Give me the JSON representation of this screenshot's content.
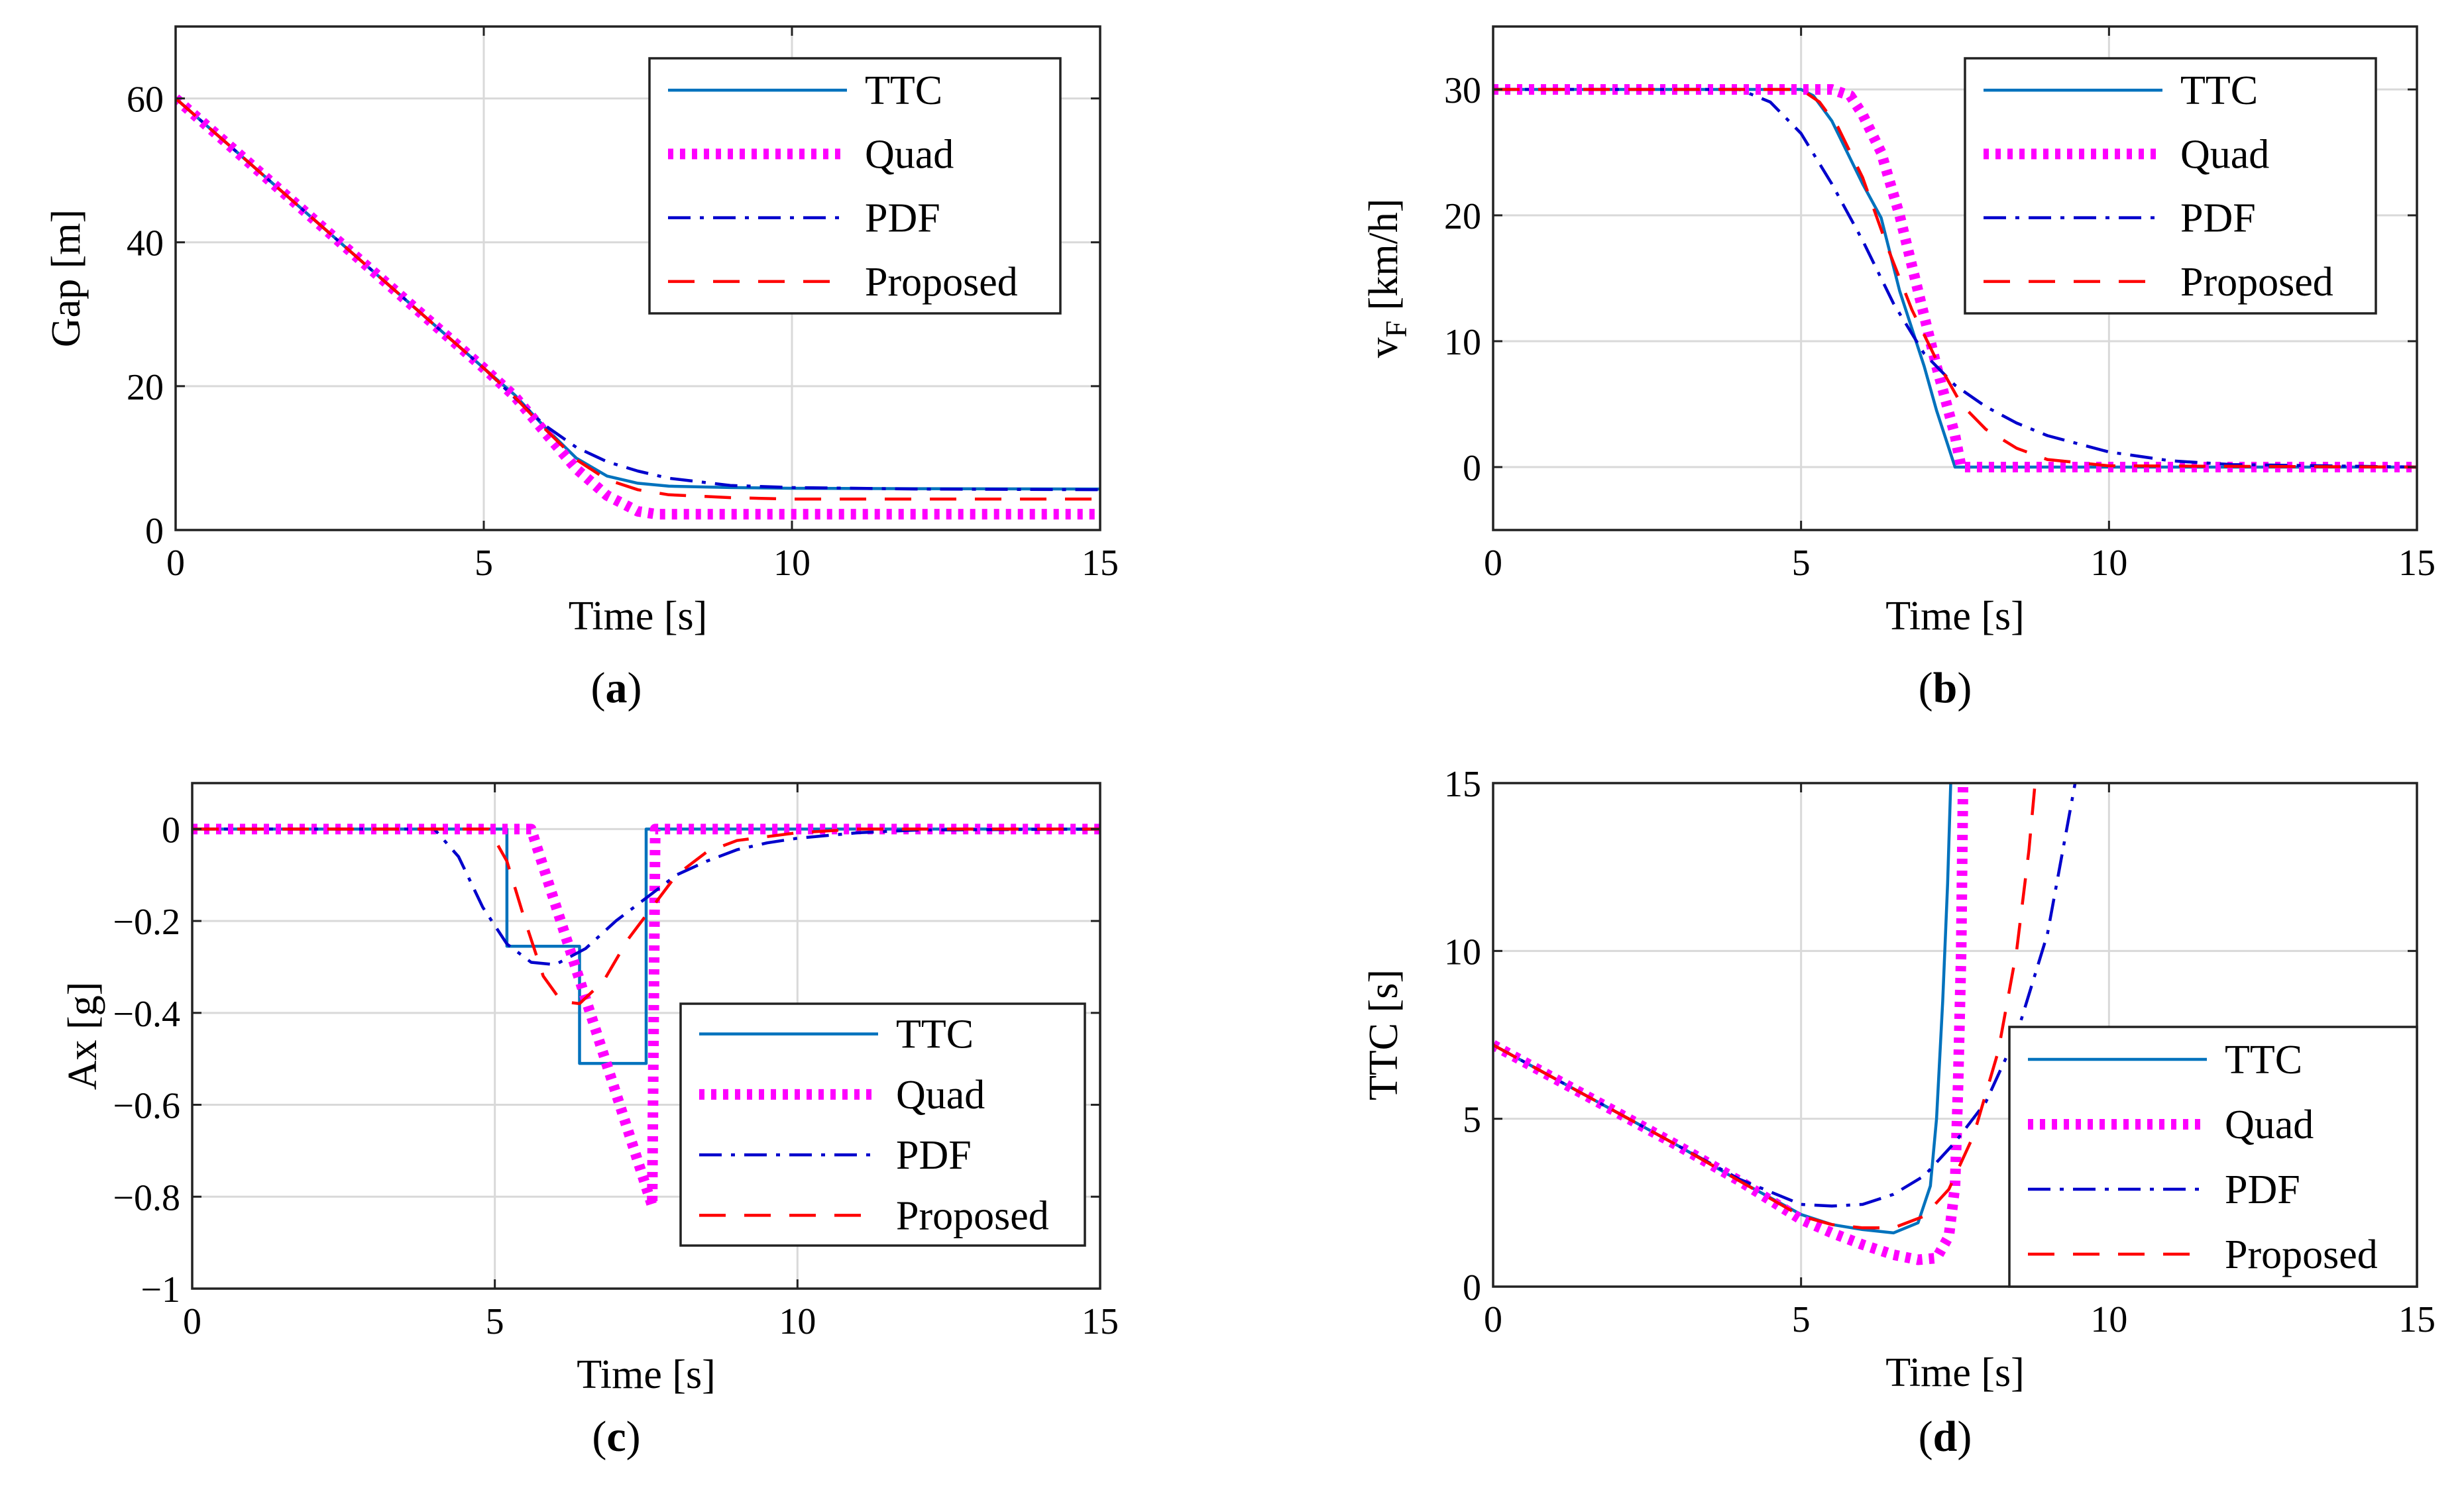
{
  "styles": {
    "TTC": {
      "color": "#0072bd",
      "width": 4.5,
      "dash": ""
    },
    "Quad": {
      "color": "#ff00ff",
      "width": 16,
      "dash": "8 10"
    },
    "PDF": {
      "color": "#0000cc",
      "width": 4.5,
      "dash": "34 14 6 14"
    },
    "Proposed": {
      "color": "#ff0000",
      "width": 4.5,
      "dash": "40 28"
    }
  },
  "chart_data": [
    {
      "id": "a",
      "type": "line",
      "caption": "a",
      "xlabel": "Time [s]",
      "ylabel": "Gap [m]",
      "xlim": [
        0,
        15
      ],
      "ylim": [
        0,
        70
      ],
      "xticks": [
        0,
        5,
        10,
        15
      ],
      "yticks": [
        0,
        20,
        40,
        60
      ],
      "grid": true,
      "legend_position": "top-right",
      "legend": [
        "TTC",
        "Quad",
        "PDF",
        "Proposed"
      ],
      "series": [
        {
          "name": "TTC",
          "points": [
            [
              0,
              60
            ],
            [
              1,
              52.5
            ],
            [
              2,
              45
            ],
            [
              3,
              37.5
            ],
            [
              4,
              30
            ],
            [
              5,
              22.5
            ],
            [
              5.5,
              18.8
            ],
            [
              6,
              14.2
            ],
            [
              6.5,
              10
            ],
            [
              7,
              7.5
            ],
            [
              7.5,
              6.5
            ],
            [
              8,
              6.1
            ],
            [
              9,
              5.9
            ],
            [
              10,
              5.8
            ],
            [
              12,
              5.75
            ],
            [
              15,
              5.7
            ]
          ]
        },
        {
          "name": "Quad",
          "points": [
            [
              0,
              60
            ],
            [
              1,
              52.5
            ],
            [
              2,
              45
            ],
            [
              3,
              37.5
            ],
            [
              4,
              30
            ],
            [
              5,
              22.5
            ],
            [
              5.5,
              18.6
            ],
            [
              6,
              13.5
            ],
            [
              6.5,
              8.5
            ],
            [
              7,
              4.8
            ],
            [
              7.5,
              2.6
            ],
            [
              7.8,
              2.2
            ],
            [
              10,
              2.2
            ],
            [
              12,
              2.2
            ],
            [
              15,
              2.2
            ]
          ]
        },
        {
          "name": "PDF",
          "points": [
            [
              0,
              60
            ],
            [
              1,
              52.5
            ],
            [
              2,
              45
            ],
            [
              3,
              37.5
            ],
            [
              4,
              30
            ],
            [
              5,
              22.5
            ],
            [
              5.5,
              18.4
            ],
            [
              6,
              14.5
            ],
            [
              6.5,
              11.5
            ],
            [
              7,
              9.5
            ],
            [
              7.5,
              8.2
            ],
            [
              8,
              7.2
            ],
            [
              9,
              6.2
            ],
            [
              10,
              5.9
            ],
            [
              12,
              5.7
            ],
            [
              15,
              5.6
            ]
          ]
        },
        {
          "name": "Proposed",
          "points": [
            [
              0,
              60
            ],
            [
              1,
              52.5
            ],
            [
              2,
              45
            ],
            [
              3,
              37.5
            ],
            [
              4,
              30
            ],
            [
              5,
              22.5
            ],
            [
              5.5,
              18.5
            ],
            [
              6,
              14
            ],
            [
              6.5,
              9.8
            ],
            [
              7,
              7
            ],
            [
              7.5,
              5.6
            ],
            [
              8,
              4.9
            ],
            [
              9,
              4.5
            ],
            [
              10,
              4.3
            ],
            [
              12,
              4.3
            ],
            [
              15,
              4.3
            ]
          ]
        }
      ]
    },
    {
      "id": "b",
      "type": "line",
      "caption": "b",
      "xlabel": "Time [s]",
      "ylabel": "v",
      "ylabel_sub": "F",
      "ylabel_unit": " [km/h]",
      "xlim": [
        0,
        15
      ],
      "ylim": [
        -5,
        35
      ],
      "xticks": [
        0,
        5,
        10,
        15
      ],
      "yticks": [
        0,
        10,
        20,
        30
      ],
      "grid": true,
      "legend_position": "top-right",
      "legend": [
        "TTC",
        "Quad",
        "PDF",
        "Proposed"
      ],
      "series": [
        {
          "name": "TTC",
          "points": [
            [
              0,
              30
            ],
            [
              5,
              30
            ],
            [
              5.2,
              29.5
            ],
            [
              5.5,
              27.5
            ],
            [
              5.8,
              24.5
            ],
            [
              6,
              22.5
            ],
            [
              6.3,
              19.8
            ],
            [
              6.6,
              14
            ],
            [
              7,
              8
            ],
            [
              7.2,
              4.5
            ],
            [
              7.5,
              0
            ],
            [
              10,
              0
            ],
            [
              15,
              0
            ]
          ]
        },
        {
          "name": "Quad",
          "points": [
            [
              0,
              30
            ],
            [
              5.5,
              30
            ],
            [
              5.8,
              29.5
            ],
            [
              6,
              28
            ],
            [
              6.3,
              25
            ],
            [
              6.6,
              20
            ],
            [
              6.9,
              14
            ],
            [
              7.2,
              8
            ],
            [
              7.5,
              2.5
            ],
            [
              7.6,
              0
            ],
            [
              10,
              0
            ],
            [
              15,
              0
            ]
          ]
        },
        {
          "name": "PDF",
          "points": [
            [
              0,
              30
            ],
            [
              4,
              30
            ],
            [
              4.5,
              29
            ],
            [
              5,
              26.5
            ],
            [
              5.5,
              22.5
            ],
            [
              6,
              18
            ],
            [
              6.5,
              13
            ],
            [
              7,
              9
            ],
            [
              7.5,
              6.5
            ],
            [
              8,
              4.8
            ],
            [
              8.5,
              3.5
            ],
            [
              9,
              2.5
            ],
            [
              10,
              1.2
            ],
            [
              11,
              0.5
            ],
            [
              12,
              0.2
            ],
            [
              15,
              0
            ]
          ]
        },
        {
          "name": "Proposed",
          "points": [
            [
              0,
              30
            ],
            [
              5,
              30
            ],
            [
              5.3,
              29
            ],
            [
              5.6,
              27
            ],
            [
              6,
              23
            ],
            [
              6.4,
              17.5
            ],
            [
              6.8,
              12.5
            ],
            [
              7.2,
              8.5
            ],
            [
              7.6,
              5
            ],
            [
              8,
              3
            ],
            [
              8.5,
              1.5
            ],
            [
              9,
              0.6
            ],
            [
              10,
              0.1
            ],
            [
              15,
              0
            ]
          ]
        }
      ]
    },
    {
      "id": "c",
      "type": "line",
      "caption": "c",
      "xlabel": "Time [s]",
      "ylabel": "Ax [g]",
      "xlim": [
        0,
        15
      ],
      "ylim": [
        -1,
        0.1
      ],
      "xticks": [
        0,
        5,
        10,
        15
      ],
      "yticks": [
        -1,
        -0.8,
        -0.6,
        -0.4,
        -0.2,
        0
      ],
      "ytick_labels": [
        "−1",
        "−0.8",
        "−0.6",
        "−0.4",
        "−0.2",
        "0"
      ],
      "grid": true,
      "legend_position": "bottom-right",
      "legend": [
        "TTC",
        "Quad",
        "PDF",
        "Proposed"
      ],
      "series": [
        {
          "name": "TTC",
          "points": [
            [
              0,
              0
            ],
            [
              5.2,
              0
            ],
            [
              5.2,
              -0.255
            ],
            [
              6.4,
              -0.255
            ],
            [
              6.4,
              -0.51
            ],
            [
              7.5,
              -0.51
            ],
            [
              7.5,
              0
            ],
            [
              15,
              0
            ]
          ]
        },
        {
          "name": "Quad",
          "points": [
            [
              0,
              0
            ],
            [
              5.6,
              0
            ],
            [
              7.6,
              -0.82
            ],
            [
              7.65,
              0
            ],
            [
              15,
              0
            ]
          ]
        },
        {
          "name": "PDF",
          "points": [
            [
              0,
              0
            ],
            [
              4,
              0
            ],
            [
              4.4,
              -0.06
            ],
            [
              4.8,
              -0.17
            ],
            [
              5.2,
              -0.25
            ],
            [
              5.6,
              -0.29
            ],
            [
              6,
              -0.295
            ],
            [
              6.5,
              -0.26
            ],
            [
              7,
              -0.2
            ],
            [
              7.5,
              -0.15
            ],
            [
              8,
              -0.1
            ],
            [
              8.5,
              -0.07
            ],
            [
              9,
              -0.045
            ],
            [
              9.5,
              -0.03
            ],
            [
              10,
              -0.02
            ],
            [
              11,
              -0.008
            ],
            [
              12,
              -0.002
            ],
            [
              15,
              0
            ]
          ]
        },
        {
          "name": "Proposed",
          "points": [
            [
              0,
              0
            ],
            [
              4.9,
              0
            ],
            [
              5.2,
              -0.07
            ],
            [
              5.5,
              -0.2
            ],
            [
              5.8,
              -0.32
            ],
            [
              6.1,
              -0.375
            ],
            [
              6.4,
              -0.38
            ],
            [
              6.8,
              -0.33
            ],
            [
              7.2,
              -0.24
            ],
            [
              7.6,
              -0.17
            ],
            [
              8,
              -0.1
            ],
            [
              8.5,
              -0.05
            ],
            [
              9,
              -0.025
            ],
            [
              10,
              -0.008
            ],
            [
              11,
              0
            ],
            [
              15,
              0
            ]
          ]
        }
      ]
    },
    {
      "id": "d",
      "type": "line",
      "caption": "d",
      "xlabel": "Time [s]",
      "ylabel": "TTC [s]",
      "xlim": [
        0,
        15
      ],
      "ylim": [
        0,
        15
      ],
      "xticks": [
        0,
        5,
        10,
        15
      ],
      "yticks": [
        0,
        5,
        10,
        15
      ],
      "grid": true,
      "legend_position": "bottom-right",
      "legend": [
        "TTC",
        "Quad",
        "PDF",
        "Proposed"
      ],
      "series": [
        {
          "name": "TTC",
          "points": [
            [
              0,
              7.2
            ],
            [
              1,
              6.2
            ],
            [
              2,
              5.2
            ],
            [
              3,
              4.2
            ],
            [
              4,
              3.15
            ],
            [
              5,
              2.15
            ],
            [
              5.5,
              1.85
            ],
            [
              6,
              1.7
            ],
            [
              6.5,
              1.6
            ],
            [
              6.9,
              1.9
            ],
            [
              7.1,
              3
            ],
            [
              7.2,
              5
            ],
            [
              7.3,
              8.5
            ],
            [
              7.38,
              12
            ],
            [
              7.43,
              15
            ]
          ]
        },
        {
          "name": "Quad",
          "points": [
            [
              0,
              7.2
            ],
            [
              1,
              6.2
            ],
            [
              2,
              5.2
            ],
            [
              3,
              4.2
            ],
            [
              4,
              3.15
            ],
            [
              5,
              2
            ],
            [
              5.5,
              1.6
            ],
            [
              6,
              1.25
            ],
            [
              6.5,
              0.95
            ],
            [
              6.9,
              0.8
            ],
            [
              7.2,
              0.85
            ],
            [
              7.4,
              1.5
            ],
            [
              7.5,
              3
            ],
            [
              7.55,
              6
            ],
            [
              7.6,
              10
            ],
            [
              7.63,
              15
            ]
          ]
        },
        {
          "name": "PDF",
          "points": [
            [
              0,
              7.2
            ],
            [
              1,
              6.2
            ],
            [
              2,
              5.2
            ],
            [
              3,
              4.2
            ],
            [
              4,
              3.2
            ],
            [
              5,
              2.45
            ],
            [
              5.5,
              2.4
            ],
            [
              6,
              2.45
            ],
            [
              6.5,
              2.75
            ],
            [
              7,
              3.3
            ],
            [
              7.5,
              4.3
            ],
            [
              8,
              5.5
            ],
            [
              8.5,
              7.5
            ],
            [
              9,
              10.5
            ],
            [
              9.3,
              13.5
            ],
            [
              9.45,
              15
            ]
          ]
        },
        {
          "name": "Proposed",
          "points": [
            [
              0,
              7.2
            ],
            [
              1,
              6.2
            ],
            [
              2,
              5.2
            ],
            [
              3,
              4.2
            ],
            [
              4,
              3.15
            ],
            [
              5,
              2.1
            ],
            [
              5.5,
              1.85
            ],
            [
              6,
              1.75
            ],
            [
              6.5,
              1.75
            ],
            [
              7,
              2.1
            ],
            [
              7.4,
              2.9
            ],
            [
              7.8,
              4.5
            ],
            [
              8.2,
              7
            ],
            [
              8.5,
              10
            ],
            [
              8.7,
              13
            ],
            [
              8.8,
              15
            ]
          ]
        }
      ]
    }
  ]
}
